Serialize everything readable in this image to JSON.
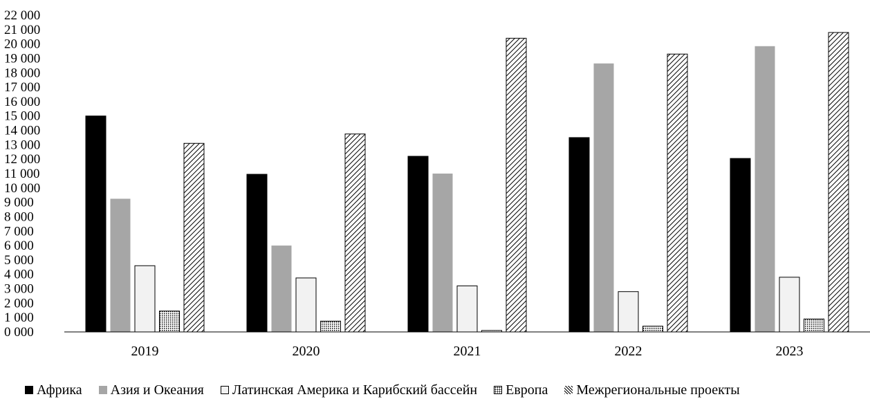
{
  "chart_data": {
    "type": "bar",
    "categories": [
      "2019",
      "2020",
      "2021",
      "2022",
      "2023"
    ],
    "series": [
      {
        "name": "Африка",
        "values": [
          15000,
          10950,
          12200,
          13500,
          12050
        ],
        "fill": "#000000",
        "pattern": "solid"
      },
      {
        "name": "Азия и Океания",
        "values": [
          9250,
          6000,
          11000,
          18650,
          19850
        ],
        "fill": "#a6a6a6",
        "pattern": "solid"
      },
      {
        "name": "Латинская Америка и Карибский бассейн",
        "values": [
          4600,
          3750,
          3200,
          2800,
          3800
        ],
        "fill": "#f2f2f2",
        "pattern": "outline"
      },
      {
        "name": "Европа",
        "values": [
          1450,
          750,
          100,
          400,
          900
        ],
        "fill": "#ffffff",
        "pattern": "dots"
      },
      {
        "name": "Межрегиональные проекты",
        "values": [
          13100,
          13750,
          20400,
          19300,
          20800
        ],
        "fill": "#ffffff",
        "pattern": "diagonal"
      }
    ],
    "ylim": [
      0,
      22000
    ],
    "ytick_step": 1000,
    "ytick_labels": [
      "0 000",
      "1 000",
      "2 000",
      "3 000",
      "4 000",
      "5 000",
      "6 000",
      "7 000",
      "8 000",
      "9 000",
      "10 000",
      "11 000",
      "12 000",
      "13 000",
      "14 000",
      "15 000",
      "16 000",
      "17 000",
      "18 000",
      "19 000",
      "20 000",
      "21 000",
      "22 000"
    ],
    "grid": false,
    "legend_position": "bottom",
    "title": "",
    "xlabel": "",
    "ylabel": ""
  }
}
